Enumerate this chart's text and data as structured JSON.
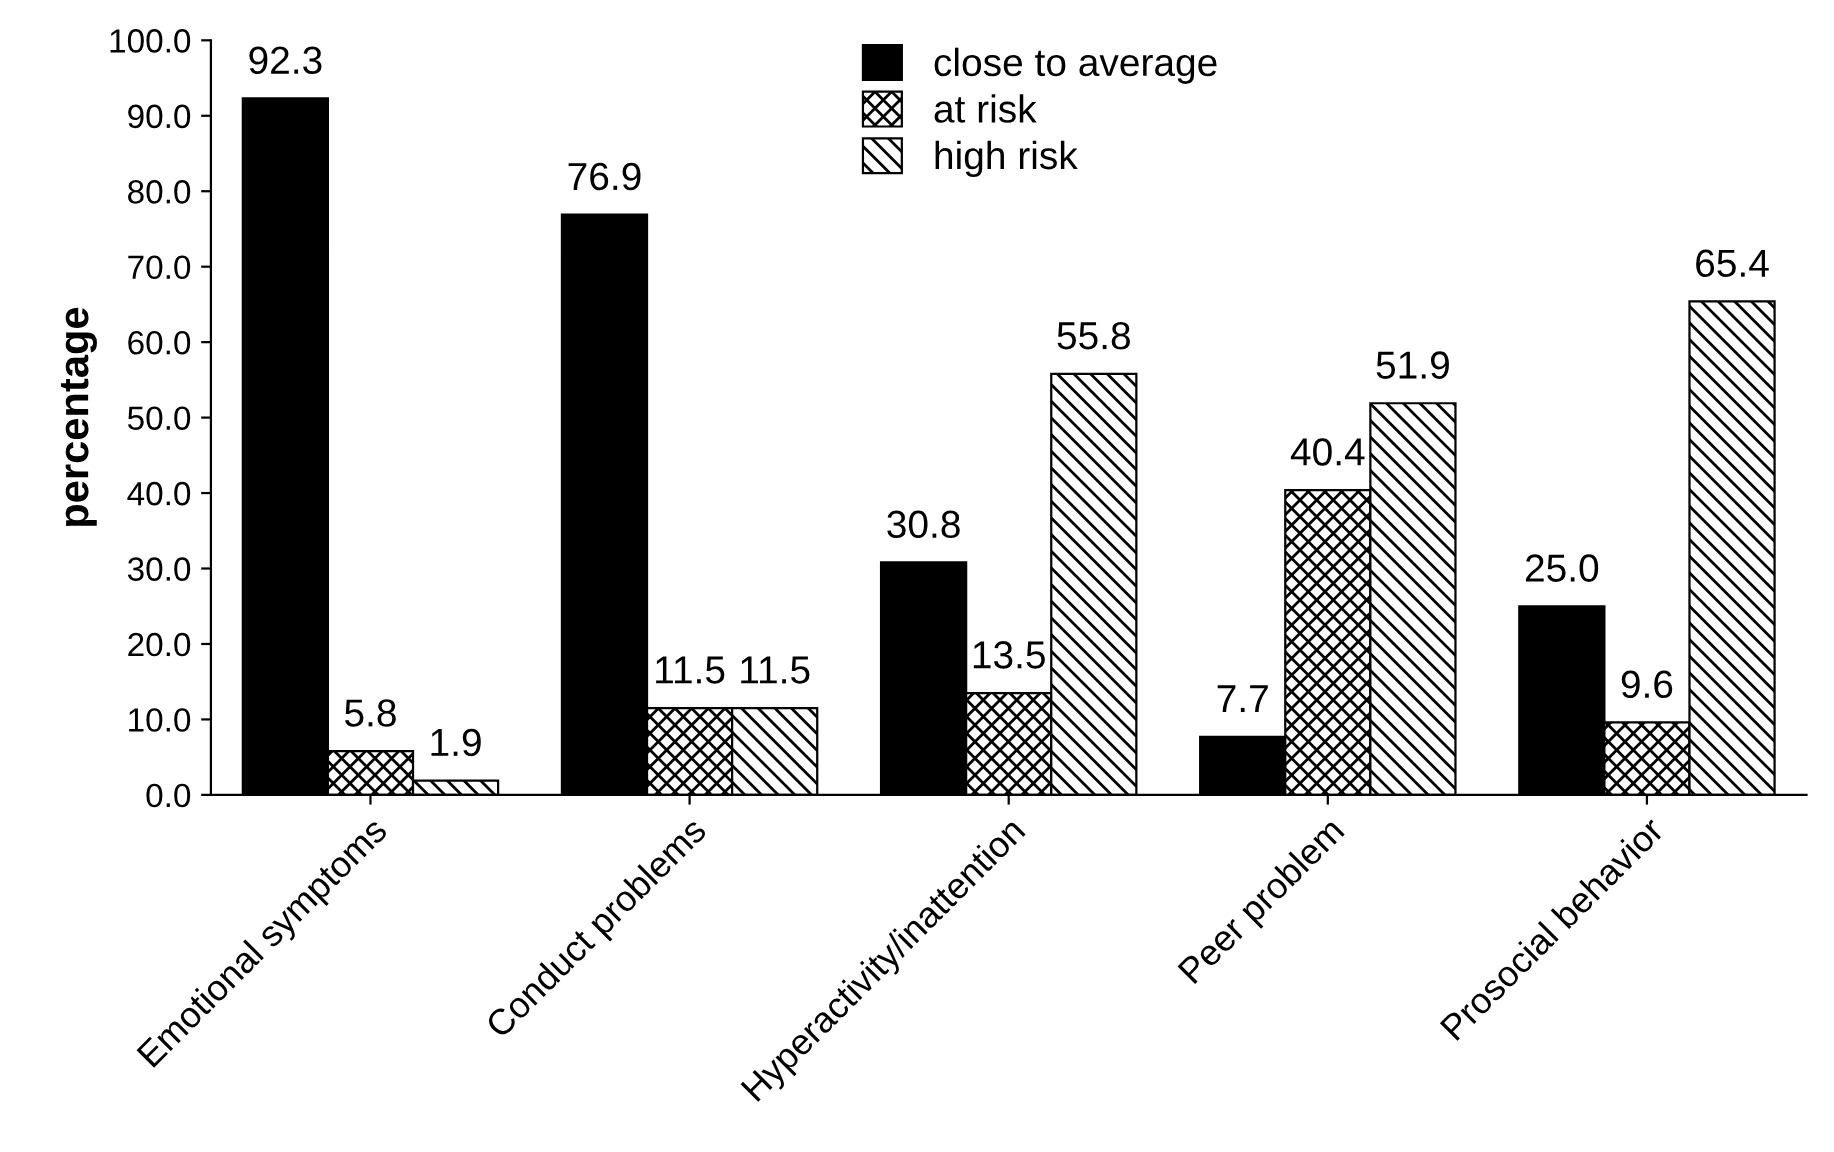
{
  "chart_data": {
    "type": "bar",
    "ylabel": "percentage",
    "categories": [
      "Emotional symptoms",
      "Conduct problems",
      "Hyperactivity/inattention",
      "Peer problem",
      "Prosocial behavior"
    ],
    "series": [
      {
        "name": "close to average",
        "color": "#000000",
        "values": [
          92.3,
          76.9,
          30.8,
          7.7,
          25.0
        ],
        "value_labels": [
          "92.3",
          "76.9",
          "30.8",
          "7.7",
          "25.0"
        ]
      },
      {
        "name": "at risk",
        "color": "#000000",
        "values": [
          5.8,
          11.5,
          13.5,
          40.4,
          9.6
        ],
        "value_labels": [
          "5.8",
          "11.5",
          "13.5",
          "40.4",
          "9.6"
        ]
      },
      {
        "name": "high risk",
        "color": "#000000",
        "values": [
          1.9,
          11.5,
          55.8,
          51.9,
          65.4
        ],
        "value_labels": [
          "1.9",
          "11.5",
          "55.8",
          "51.9",
          "65.4"
        ]
      }
    ],
    "ylim": [
      0,
      100
    ],
    "yticks": [
      {
        "value": 0,
        "label": "0.0"
      },
      {
        "value": 10,
        "label": "10.0"
      },
      {
        "value": 20,
        "label": "20.0"
      },
      {
        "value": 30,
        "label": "30.0"
      },
      {
        "value": 40,
        "label": "40.0"
      },
      {
        "value": 50,
        "label": "50.0"
      },
      {
        "value": 60,
        "label": "60.0"
      },
      {
        "value": 70,
        "label": "70.0"
      },
      {
        "value": 80,
        "label": "80.0"
      },
      {
        "value": 90,
        "label": "90.0"
      },
      {
        "value": 100,
        "label": "100.0"
      }
    ],
    "grid": false,
    "legend": "top"
  }
}
